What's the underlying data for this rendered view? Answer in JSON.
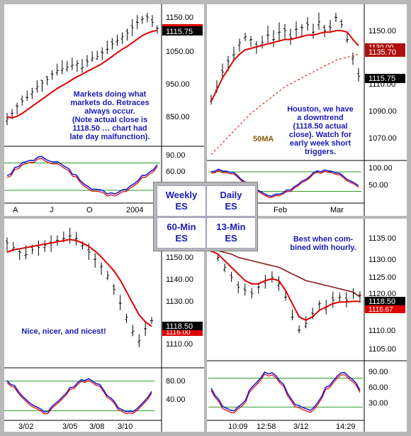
{
  "panels": {
    "weekly": {
      "price_axis": [
        "1150.00",
        "1050.00",
        "950.00",
        "850.00"
      ],
      "osc_axis": [
        "90.00",
        "60.00"
      ],
      "time_axis": [
        "A",
        "J",
        "O",
        "2004"
      ],
      "current_price": "1115.75",
      "note": [
        "Markets doing what",
        "markets do.  Retraces",
        "always occur.",
        "(Note actual close is",
        "1118.50 … chart had",
        "late day malfunction)."
      ]
    },
    "daily": {
      "price_axis": [
        "1150.00",
        "1110.00",
        "1090.00",
        "1070.00"
      ],
      "osc_axis": [
        "100.00",
        "50.00"
      ],
      "time_axis": [
        "Feb",
        "Mar"
      ],
      "price_tags": [
        "1135.70",
        "1130.00",
        "1115.75"
      ],
      "ma_label": "50MA",
      "note": [
        "Houston, we have",
        "a downtrend",
        "(1118.50 actual",
        "close).  Watch for",
        "early week short",
        "triggers."
      ]
    },
    "min60": {
      "price_axis": [
        "1150.00",
        "1140.00",
        "1130.00",
        "1110.00"
      ],
      "osc_axis": [
        "80.00",
        "40.00"
      ],
      "time_axis": [
        "3/02",
        "3/05",
        "3/08",
        "3/10"
      ],
      "price_tags": [
        "1118.50",
        "1116.00"
      ],
      "note": [
        "Nice, nicer, and nicest!"
      ]
    },
    "min13": {
      "price_axis": [
        "1135.00",
        "1130.00",
        "1125.00",
        "1120.00",
        "1110.00",
        "1105.00"
      ],
      "osc_axis": [
        "90.00",
        "60.00",
        "30.00"
      ],
      "time_axis": [
        "10:09",
        "12:58",
        "3/12",
        "14:29"
      ],
      "price_tags": [
        "1118.50",
        "1116.67"
      ],
      "note": [
        "Best when com-",
        "bined with hourly."
      ]
    }
  },
  "legend": {
    "weekly": [
      "Weekly",
      "ES"
    ],
    "daily": [
      "Daily",
      "ES"
    ],
    "min60": [
      "60-Min",
      "ES"
    ],
    "min13": [
      "13-Min",
      "ES"
    ]
  },
  "colors": {
    "ma_red": "#e00000",
    "ma_dark": "#8b1a1a",
    "osc_blue": "#1a1ad8",
    "osc_red": "#e00000",
    "level_green": "#2a9a2a",
    "note_blue": "#1a1ab8",
    "ma_label_brown": "#8b5a10",
    "tag_black": "#000000",
    "tag_red": "#e00000",
    "tag_darkred": "#b01010"
  },
  "chart_data": [
    {
      "name": "Weekly ES",
      "type": "line",
      "price_ticks": [
        1150,
        1050,
        950,
        850
      ],
      "ylim": [
        800,
        1170
      ],
      "close": [
        865,
        880,
        900,
        915,
        925,
        940,
        955,
        965,
        975,
        990,
        1000,
        1005,
        1010,
        1015,
        1020,
        1010,
        1025,
        1035,
        1040,
        1050,
        1060,
        1075,
        1085,
        1095,
        1105,
        1120,
        1135,
        1145,
        1150,
        1135,
        1118
      ],
      "ma": [
        870,
        868,
        872,
        880,
        890,
        900,
        910,
        920,
        930,
        940,
        950,
        958,
        966,
        975,
        983,
        990,
        998,
        1005,
        1012,
        1020,
        1030,
        1040,
        1050,
        1060,
        1068,
        1078,
        1088,
        1098,
        1105,
        1110,
        1113
      ],
      "osc_ticks": [
        90,
        60
      ],
      "osc_levels": [
        75,
        20
      ],
      "current_price": 1115.75
    },
    {
      "name": "Daily ES",
      "type": "line",
      "price_ticks": [
        1150,
        1110,
        1090,
        1070
      ],
      "ylim": [
        1060,
        1160
      ],
      "close": [
        1100,
        1108,
        1118,
        1125,
        1130,
        1138,
        1142,
        1140,
        1135,
        1138,
        1143,
        1140,
        1145,
        1146,
        1141,
        1147,
        1148,
        1150,
        1145,
        1152,
        1146,
        1148,
        1155,
        1150,
        1140,
        1128,
        1115
      ],
      "ma": [
        1098,
        1106,
        1114,
        1120,
        1126,
        1130,
        1133,
        1134,
        1135,
        1136,
        1137,
        1138,
        1139,
        1140,
        1140,
        1141,
        1142,
        1143,
        1143,
        1144,
        1145,
        1145,
        1146,
        1146,
        1145,
        1140,
        1135.7
      ],
      "ma50": [
        1062,
        1066,
        1070,
        1074,
        1078,
        1082,
        1086,
        1090,
        1093,
        1096,
        1099,
        1102,
        1105,
        1108,
        1110,
        1112,
        1114,
        1116,
        1118,
        1120,
        1122,
        1124,
        1126,
        1127,
        1128,
        1129,
        1130
      ],
      "osc_ticks": [
        100,
        50
      ],
      "osc_levels": [
        80,
        25
      ],
      "current_price": 1115.75
    },
    {
      "name": "60-Min ES",
      "type": "line",
      "price_ticks": [
        1150,
        1140,
        1130,
        1110
      ],
      "ylim": [
        1100,
        1160
      ],
      "close": [
        1152,
        1150,
        1148,
        1147,
        1149,
        1150,
        1151,
        1152,
        1153,
        1154,
        1155,
        1154,
        1151,
        1148,
        1145,
        1142,
        1138,
        1132,
        1126,
        1120,
        1114,
        1110,
        1115,
        1118.5
      ],
      "ma": [
        1148,
        1149,
        1149.5,
        1150,
        1150.5,
        1151,
        1151.5,
        1152,
        1152.5,
        1153,
        1153.5,
        1153,
        1152,
        1150.5,
        1148.5,
        1146,
        1143,
        1140,
        1136,
        1131,
        1126,
        1121,
        1118,
        1116
      ],
      "osc_ticks": [
        80,
        40
      ],
      "osc_levels": [
        80,
        15
      ],
      "tags": [
        1118.5,
        1116.0
      ]
    },
    {
      "name": "13-Min ES",
      "type": "line",
      "price_ticks": [
        1135,
        1130,
        1125,
        1120,
        1110,
        1105
      ],
      "ylim": [
        1100,
        1140
      ],
      "close": [
        1133,
        1130,
        1127,
        1124,
        1121,
        1120,
        1119,
        1121,
        1123,
        1124,
        1122,
        1118,
        1112,
        1108,
        1110,
        1113,
        1116,
        1115,
        1117,
        1118,
        1117,
        1119,
        1118.5
      ],
      "ma": [
        1132,
        1131,
        1129,
        1127,
        1125,
        1123,
        1122,
        1122,
        1123,
        1123.5,
        1123,
        1120,
        1116,
        1112,
        1111,
        1112,
        1114,
        1115,
        1116,
        1116.5,
        1116.5,
        1116.7,
        1116.67
      ],
      "ma2": [
        1133,
        1132,
        1131.5,
        1131,
        1130,
        1129.5,
        1129,
        1128.5,
        1128,
        1127.5,
        1127,
        1126,
        1125,
        1124,
        1123,
        1122.5,
        1122,
        1121.5,
        1121,
        1120.5,
        1120,
        1119.5,
        1118
      ],
      "osc_ticks": [
        90,
        60,
        30
      ],
      "osc_levels": [
        75,
        20
      ],
      "tags": [
        1118.5,
        1116.67
      ]
    }
  ]
}
